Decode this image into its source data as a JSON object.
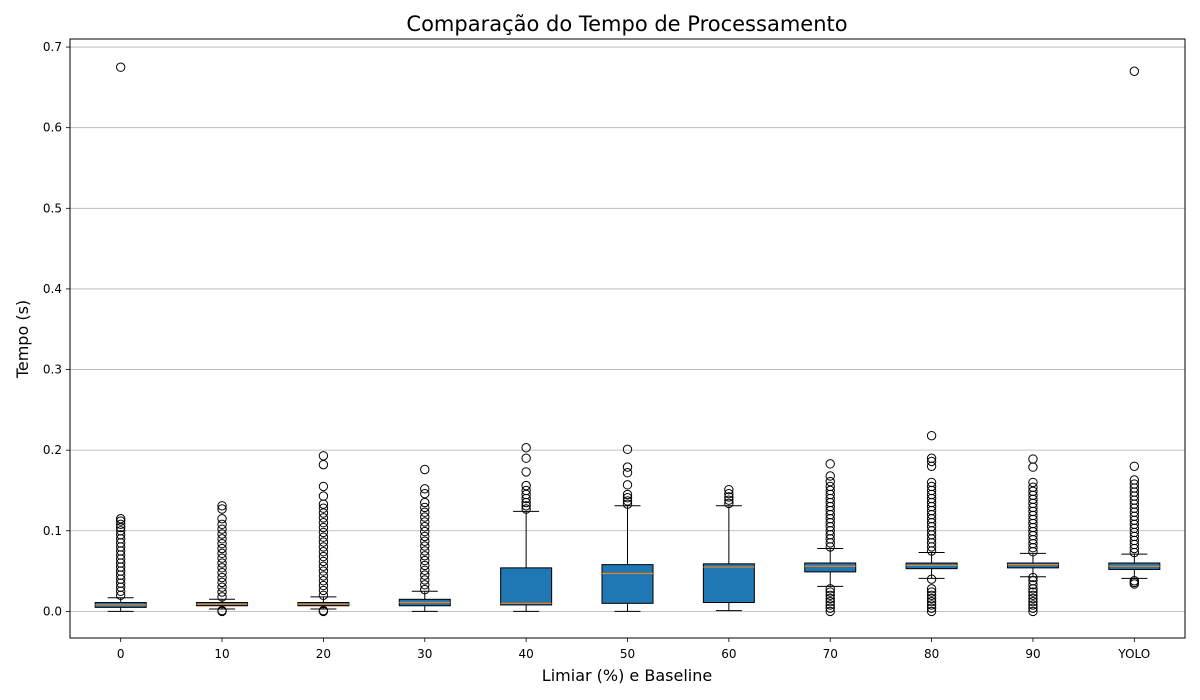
{
  "chart_data": {
    "type": "boxplot",
    "title": "Comparação do Tempo de Processamento",
    "xlabel": "Limiar (%) e Baseline",
    "ylabel": "Tempo (s)",
    "ylim": [
      -0.033,
      0.71
    ],
    "yticks": [
      0.0,
      0.1,
      0.2,
      0.3,
      0.4,
      0.5,
      0.6,
      0.7
    ],
    "ytick_labels": [
      "0.0",
      "0.1",
      "0.2",
      "0.3",
      "0.4",
      "0.5",
      "0.6",
      "0.7"
    ],
    "grid": "horizontal",
    "box_color": "#1f77b4",
    "median_color": "#ff7f0e",
    "categories": [
      "0",
      "10",
      "20",
      "30",
      "40",
      "50",
      "60",
      "70",
      "80",
      "90",
      "YOLO"
    ],
    "boxes": [
      {
        "label": "0",
        "whisker_low": 0.0,
        "q1": 0.005,
        "median": 0.008,
        "q3": 0.011,
        "whisker_high": 0.017,
        "outliers_high": [
          0.02,
          0.025,
          0.03,
          0.035,
          0.04,
          0.045,
          0.05,
          0.055,
          0.06,
          0.065,
          0.07,
          0.075,
          0.08,
          0.085,
          0.09,
          0.095,
          0.1,
          0.104,
          0.108,
          0.112,
          0.115,
          0.675
        ],
        "outliers_low": []
      },
      {
        "label": "10",
        "whisker_low": 0.003,
        "q1": 0.007,
        "median": 0.009,
        "q3": 0.011,
        "whisker_high": 0.015,
        "outliers_high": [
          0.018,
          0.024,
          0.03,
          0.036,
          0.042,
          0.048,
          0.054,
          0.06,
          0.066,
          0.072,
          0.078,
          0.084,
          0.09,
          0.096,
          0.102,
          0.108,
          0.115,
          0.127,
          0.131
        ],
        "outliers_low": [
          0.0,
          0.001
        ]
      },
      {
        "label": "20",
        "whisker_low": 0.003,
        "q1": 0.007,
        "median": 0.009,
        "q3": 0.011,
        "whisker_high": 0.018,
        "outliers_high": [
          0.02,
          0.026,
          0.032,
          0.038,
          0.044,
          0.05,
          0.056,
          0.062,
          0.068,
          0.074,
          0.08,
          0.086,
          0.092,
          0.098,
          0.104,
          0.11,
          0.116,
          0.122,
          0.128,
          0.133,
          0.143,
          0.155,
          0.182,
          0.193
        ],
        "outliers_low": [
          0.0,
          0.001
        ]
      },
      {
        "label": "30",
        "whisker_low": 0.0,
        "q1": 0.007,
        "median": 0.011,
        "q3": 0.015,
        "whisker_high": 0.025,
        "outliers_high": [
          0.027,
          0.033,
          0.039,
          0.045,
          0.051,
          0.057,
          0.063,
          0.069,
          0.075,
          0.081,
          0.087,
          0.093,
          0.099,
          0.105,
          0.111,
          0.117,
          0.123,
          0.129,
          0.135,
          0.146,
          0.152,
          0.176
        ],
        "outliers_low": []
      },
      {
        "label": "40",
        "whisker_low": 0.0,
        "q1": 0.008,
        "median": 0.01,
        "q3": 0.054,
        "whisker_high": 0.124,
        "outliers_high": [
          0.127,
          0.131,
          0.135,
          0.14,
          0.145,
          0.15,
          0.156,
          0.173,
          0.19,
          0.203
        ],
        "outliers_low": []
      },
      {
        "label": "50",
        "whisker_low": 0.0,
        "q1": 0.01,
        "median": 0.047,
        "q3": 0.058,
        "whisker_high": 0.131,
        "outliers_high": [
          0.133,
          0.137,
          0.141,
          0.145,
          0.157,
          0.172,
          0.179,
          0.201
        ],
        "outliers_low": []
      },
      {
        "label": "60",
        "whisker_low": 0.001,
        "q1": 0.011,
        "median": 0.055,
        "q3": 0.059,
        "whisker_high": 0.131,
        "outliers_high": [
          0.134,
          0.138,
          0.142,
          0.146,
          0.151
        ],
        "outliers_low": []
      },
      {
        "label": "70",
        "whisker_low": 0.031,
        "q1": 0.049,
        "median": 0.056,
        "q3": 0.06,
        "whisker_high": 0.078,
        "outliers_high": [
          0.08,
          0.085,
          0.09,
          0.095,
          0.1,
          0.105,
          0.11,
          0.115,
          0.12,
          0.125,
          0.13,
          0.135,
          0.14,
          0.145,
          0.15,
          0.155,
          0.161,
          0.168,
          0.183
        ],
        "outliers_low": [
          0.0,
          0.004,
          0.008,
          0.012,
          0.016,
          0.02,
          0.024,
          0.028
        ]
      },
      {
        "label": "80",
        "whisker_low": 0.041,
        "q1": 0.053,
        "median": 0.057,
        "q3": 0.06,
        "whisker_high": 0.073,
        "outliers_high": [
          0.075,
          0.08,
          0.085,
          0.09,
          0.095,
          0.1,
          0.105,
          0.11,
          0.115,
          0.12,
          0.125,
          0.13,
          0.135,
          0.14,
          0.145,
          0.15,
          0.155,
          0.16,
          0.18,
          0.186,
          0.19,
          0.218
        ],
        "outliers_low": [
          0.0,
          0.004,
          0.008,
          0.012,
          0.016,
          0.02,
          0.024,
          0.028,
          0.04
        ]
      },
      {
        "label": "90",
        "whisker_low": 0.043,
        "q1": 0.054,
        "median": 0.058,
        "q3": 0.06,
        "whisker_high": 0.072,
        "outliers_high": [
          0.074,
          0.079,
          0.084,
          0.089,
          0.094,
          0.099,
          0.104,
          0.109,
          0.114,
          0.119,
          0.124,
          0.129,
          0.134,
          0.139,
          0.144,
          0.149,
          0.154,
          0.16,
          0.179,
          0.189
        ],
        "outliers_low": [
          0.0,
          0.004,
          0.008,
          0.012,
          0.016,
          0.02,
          0.024,
          0.028,
          0.033,
          0.038,
          0.042
        ]
      },
      {
        "label": "YOLO",
        "whisker_low": 0.041,
        "q1": 0.052,
        "median": 0.056,
        "q3": 0.06,
        "whisker_high": 0.071,
        "outliers_high": [
          0.073,
          0.078,
          0.083,
          0.088,
          0.093,
          0.098,
          0.103,
          0.108,
          0.113,
          0.118,
          0.123,
          0.128,
          0.133,
          0.138,
          0.143,
          0.148,
          0.153,
          0.158,
          0.163,
          0.18,
          0.67
        ],
        "outliers_low": [
          0.034,
          0.036,
          0.038
        ]
      }
    ]
  }
}
